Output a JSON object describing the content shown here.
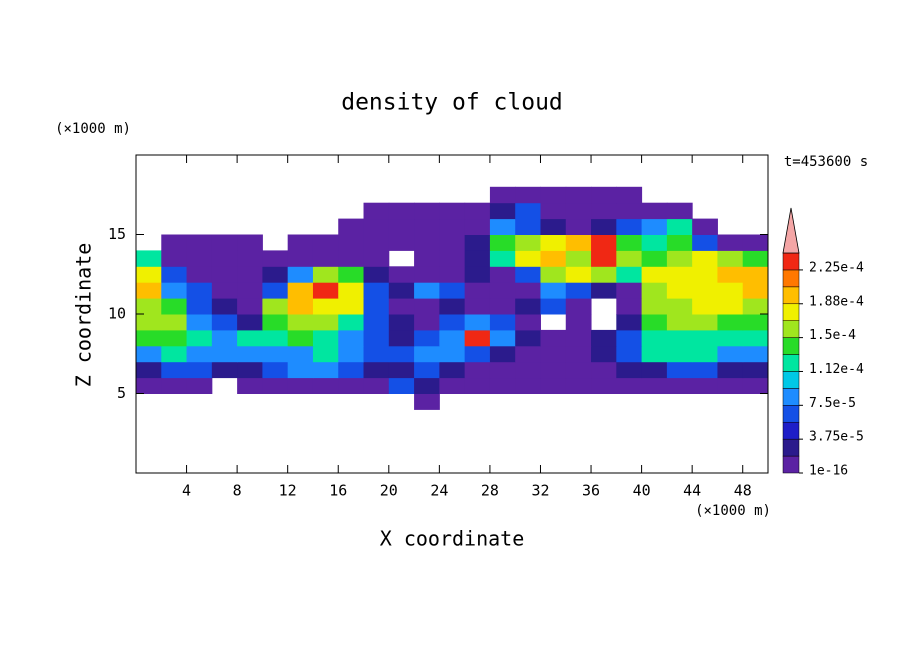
{
  "chart_data": {
    "type": "contour",
    "title": "density of cloud",
    "subtitle": "t=453600 s",
    "x_label": "X coordinate",
    "y_label": "Z coordinate",
    "x_unit": "(×1000 m)",
    "y_unit": "(×1000 m)",
    "xlim": [
      0,
      50
    ],
    "ylim": [
      0,
      20
    ],
    "xticks": [
      4,
      8,
      12,
      16,
      20,
      24,
      28,
      32,
      36,
      40,
      44,
      48
    ],
    "yticks": [
      5,
      10,
      15
    ],
    "x_edges": [
      0,
      2,
      4,
      6,
      8,
      10,
      12,
      14,
      16,
      18,
      20,
      22,
      24,
      26,
      28,
      30,
      32,
      34,
      36,
      38,
      40,
      42,
      44,
      46,
      48,
      50
    ],
    "z_edges": [
      4,
      5,
      6,
      7,
      8,
      9,
      10,
      11,
      12,
      13,
      14,
      15,
      16,
      17,
      18
    ],
    "values": [
      [
        null,
        null,
        null,
        null,
        null,
        null,
        null,
        null,
        null,
        null,
        null,
        1e-05,
        null,
        null,
        null,
        null,
        null,
        null,
        null,
        null,
        null,
        null,
        null,
        null,
        null
      ],
      [
        1e-05,
        1e-05,
        1e-05,
        null,
        1e-05,
        1e-05,
        1e-05,
        1e-05,
        1e-05,
        1e-05,
        6e-05,
        3e-05,
        1e-05,
        1e-05,
        1e-05,
        1e-05,
        1e-05,
        1e-05,
        1e-05,
        1e-05,
        1e-05,
        1e-05,
        1e-05,
        1e-05,
        1e-05
      ],
      [
        3e-05,
        6e-05,
        6e-05,
        3e-05,
        3e-05,
        6e-05,
        9e-05,
        9e-05,
        6e-05,
        3e-05,
        3e-05,
        6e-05,
        3e-05,
        1e-05,
        1e-05,
        1e-05,
        1e-05,
        1e-05,
        1e-05,
        3e-05,
        3e-05,
        6e-05,
        6e-05,
        3e-05,
        3e-05
      ],
      [
        9e-05,
        0.00012,
        9e-05,
        9e-05,
        9e-05,
        9e-05,
        9e-05,
        0.00012,
        9e-05,
        6e-05,
        6e-05,
        9e-05,
        9e-05,
        6e-05,
        3e-05,
        1e-05,
        1e-05,
        1e-05,
        3e-05,
        6e-05,
        0.00012,
        0.00012,
        0.00012,
        9e-05,
        9e-05
      ],
      [
        0.00014,
        0.00014,
        0.00012,
        9e-05,
        0.00012,
        0.00012,
        0.00014,
        0.00012,
        9e-05,
        6e-05,
        3e-05,
        6e-05,
        9e-05,
        0.00023,
        9e-05,
        3e-05,
        1e-05,
        1e-05,
        3e-05,
        6e-05,
        0.00012,
        0.00012,
        0.00012,
        0.00012,
        0.00012
      ],
      [
        0.00016,
        0.00016,
        9e-05,
        6e-05,
        3e-05,
        0.00014,
        0.00016,
        0.00016,
        0.00012,
        6e-05,
        3e-05,
        1e-05,
        6e-05,
        9e-05,
        6e-05,
        1e-05,
        null,
        1e-05,
        null,
        3e-05,
        0.00014,
        0.00016,
        0.00016,
        0.00014,
        0.00014
      ],
      [
        0.00016,
        0.00014,
        6e-05,
        3e-05,
        1e-05,
        0.00016,
        0.0002,
        0.00018,
        0.00018,
        6e-05,
        1e-05,
        1e-05,
        3e-05,
        1e-05,
        1e-05,
        3e-05,
        6e-05,
        1e-05,
        null,
        1e-05,
        0.00016,
        0.00016,
        0.00018,
        0.00018,
        0.00016
      ],
      [
        0.0002,
        9e-05,
        6e-05,
        1e-05,
        1e-05,
        6e-05,
        0.0002,
        0.00023,
        0.00018,
        6e-05,
        3e-05,
        9e-05,
        6e-05,
        1e-05,
        1e-05,
        1e-05,
        9e-05,
        6e-05,
        3e-05,
        1e-05,
        0.00016,
        0.00018,
        0.00018,
        0.00018,
        0.0002
      ],
      [
        0.00018,
        6e-05,
        1e-05,
        1e-05,
        1e-05,
        3e-05,
        9e-05,
        0.00016,
        0.00014,
        3e-05,
        1e-05,
        1e-05,
        1e-05,
        3e-05,
        1e-05,
        6e-05,
        0.00016,
        0.00018,
        0.00016,
        0.00012,
        0.00018,
        0.00018,
        0.00018,
        0.0002,
        0.0002
      ],
      [
        0.00012,
        1e-05,
        1e-05,
        1e-05,
        1e-05,
        1e-05,
        1e-05,
        1e-05,
        1e-05,
        1e-05,
        null,
        1e-05,
        1e-05,
        3e-05,
        0.00012,
        0.00018,
        0.0002,
        0.00016,
        0.00023,
        0.00016,
        0.00014,
        0.00016,
        0.00018,
        0.00016,
        0.00014
      ],
      [
        null,
        1e-05,
        1e-05,
        1e-05,
        1e-05,
        null,
        1e-05,
        1e-05,
        1e-05,
        1e-05,
        1e-05,
        1e-05,
        1e-05,
        3e-05,
        0.00014,
        0.00016,
        0.00018,
        0.0002,
        0.00023,
        0.00014,
        0.00012,
        0.00014,
        6e-05,
        1e-05,
        1e-05
      ],
      [
        null,
        null,
        null,
        null,
        null,
        null,
        null,
        null,
        1e-05,
        1e-05,
        1e-05,
        1e-05,
        1e-05,
        1e-05,
        9e-05,
        6e-05,
        3e-05,
        1e-05,
        3e-05,
        6e-05,
        9e-05,
        0.00012,
        1e-05,
        null,
        null
      ],
      [
        null,
        null,
        null,
        null,
        null,
        null,
        null,
        null,
        null,
        1e-05,
        1e-05,
        1e-05,
        1e-05,
        1e-05,
        3e-05,
        6e-05,
        1e-05,
        1e-05,
        1e-05,
        1e-05,
        1e-05,
        1e-05,
        null,
        null,
        null
      ],
      [
        null,
        null,
        null,
        null,
        null,
        null,
        null,
        null,
        null,
        null,
        null,
        null,
        null,
        null,
        1e-05,
        1e-05,
        1e-05,
        1e-05,
        1e-05,
        1e-05,
        null,
        null,
        null,
        null,
        null
      ]
    ],
    "colorbar": {
      "levels": [
        1e-16,
        1.875e-05,
        3.75e-05,
        5.625e-05,
        7.5e-05,
        9.375e-05,
        0.0001125,
        0.00013125,
        0.00015,
        0.00016875,
        0.0001875,
        0.00020625,
        0.000225,
        0.00024375
      ],
      "colors": [
        "#5b22a3",
        "#2b1b8c",
        "#1e1ec8",
        "#1450e6",
        "#1e8cff",
        "#00c8e6",
        "#00e6a0",
        "#28dc28",
        "#a0e61e",
        "#f0f000",
        "#ffbe00",
        "#ff7800",
        "#f02814",
        "#f4a6a6"
      ],
      "ticks": [
        {
          "value": 1e-16,
          "label": "1e-16"
        },
        {
          "value": 3.75e-05,
          "label": "3.75e-5"
        },
        {
          "value": 7.5e-05,
          "label": "7.5e-5"
        },
        {
          "value": 0.0001125,
          "label": "1.12e-4"
        },
        {
          "value": 0.00015,
          "label": "1.5e-4"
        },
        {
          "value": 0.0001875,
          "label": "1.88e-4"
        },
        {
          "value": 0.000225,
          "label": "2.25e-4"
        }
      ]
    }
  }
}
